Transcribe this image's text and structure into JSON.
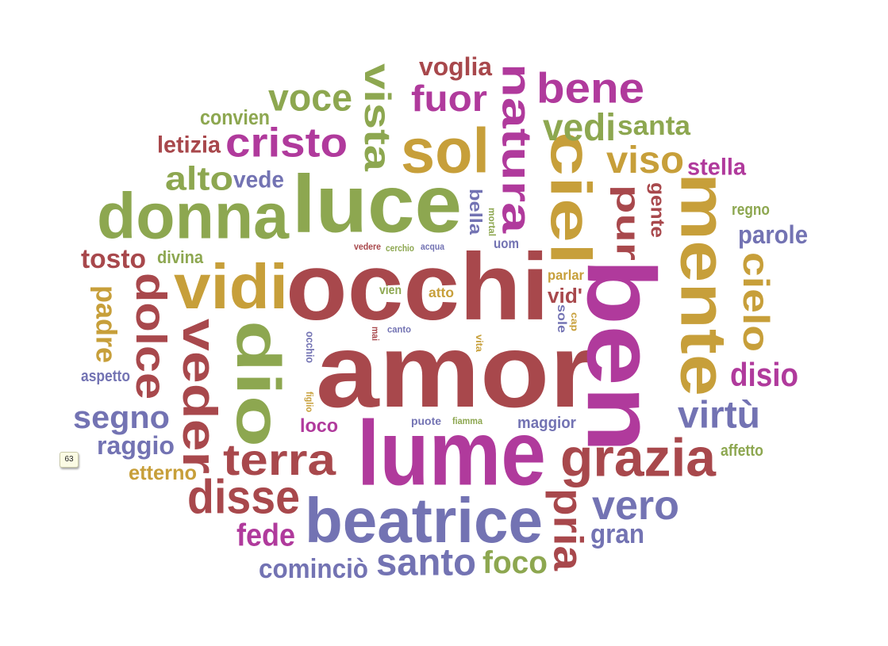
{
  "colors": {
    "red": "#a8484c",
    "green": "#8da750",
    "gold": "#c79f3a",
    "magenta": "#b03a9c",
    "blue": "#7373b3"
  },
  "tooltip": {
    "value": "63"
  },
  "words": [
    {
      "text": "amor",
      "color": "red"
    },
    {
      "text": "occhi",
      "color": "red"
    },
    {
      "text": "ben",
      "color": "magenta"
    },
    {
      "text": "lume",
      "color": "magenta"
    },
    {
      "text": "beatrice",
      "color": "blue"
    },
    {
      "text": "luce",
      "color": "green"
    },
    {
      "text": "donna",
      "color": "green"
    },
    {
      "text": "dio",
      "color": "green"
    },
    {
      "text": "vidi",
      "color": "gold"
    },
    {
      "text": "mente",
      "color": "gold"
    },
    {
      "text": "sol",
      "color": "gold"
    },
    {
      "text": "ciel",
      "color": "gold"
    },
    {
      "text": "grazia",
      "color": "red"
    },
    {
      "text": "veder",
      "color": "red"
    },
    {
      "text": "terra",
      "color": "red"
    },
    {
      "text": "disse",
      "color": "red"
    },
    {
      "text": "dolce",
      "color": "red"
    },
    {
      "text": "natura",
      "color": "magenta"
    },
    {
      "text": "vista",
      "color": "green"
    },
    {
      "text": "cristo",
      "color": "magenta"
    },
    {
      "text": "bene",
      "color": "magenta"
    },
    {
      "text": "voce",
      "color": "green"
    },
    {
      "text": "fuor",
      "color": "magenta"
    },
    {
      "text": "voglia",
      "color": "red"
    },
    {
      "text": "vedi",
      "color": "green"
    },
    {
      "text": "santa",
      "color": "green"
    },
    {
      "text": "viso",
      "color": "gold"
    },
    {
      "text": "pur",
      "color": "red"
    },
    {
      "text": "stella",
      "color": "magenta"
    },
    {
      "text": "gente",
      "color": "red"
    },
    {
      "text": "regno",
      "color": "green"
    },
    {
      "text": "parole",
      "color": "blue"
    },
    {
      "text": "cielo",
      "color": "gold"
    },
    {
      "text": "disio",
      "color": "magenta"
    },
    {
      "text": "virtù",
      "color": "blue"
    },
    {
      "text": "affetto",
      "color": "green"
    },
    {
      "text": "vero",
      "color": "blue"
    },
    {
      "text": "gran",
      "color": "blue"
    },
    {
      "text": "pria",
      "color": "red"
    },
    {
      "text": "foco",
      "color": "green"
    },
    {
      "text": "santo",
      "color": "blue"
    },
    {
      "text": "cominciò",
      "color": "blue"
    },
    {
      "text": "fede",
      "color": "magenta"
    },
    {
      "text": "convien",
      "color": "green"
    },
    {
      "text": "letizia",
      "color": "red"
    },
    {
      "text": "alto",
      "color": "green"
    },
    {
      "text": "vede",
      "color": "blue"
    },
    {
      "text": "tosto",
      "color": "red"
    },
    {
      "text": "divina",
      "color": "green"
    },
    {
      "text": "padre",
      "color": "gold"
    },
    {
      "text": "aspetto",
      "color": "blue"
    },
    {
      "text": "segno",
      "color": "blue"
    },
    {
      "text": "raggio",
      "color": "blue"
    },
    {
      "text": "etterno",
      "color": "gold"
    },
    {
      "text": "loco",
      "color": "magenta"
    },
    {
      "text": "bella",
      "color": "blue"
    },
    {
      "text": "mortal",
      "color": "green"
    },
    {
      "text": "uom",
      "color": "blue"
    },
    {
      "text": "parlar",
      "color": "gold"
    },
    {
      "text": "vid'",
      "color": "red"
    },
    {
      "text": "sole",
      "color": "blue"
    },
    {
      "text": "cap",
      "color": "gold"
    },
    {
      "text": "vien",
      "color": "green"
    },
    {
      "text": "atto",
      "color": "gold"
    },
    {
      "text": "vedere",
      "color": "red"
    },
    {
      "text": "cerchio",
      "color": "green"
    },
    {
      "text": "acqua",
      "color": "blue"
    },
    {
      "text": "occhio",
      "color": "blue"
    },
    {
      "text": "mai",
      "color": "red"
    },
    {
      "text": "canto",
      "color": "blue"
    },
    {
      "text": "vita",
      "color": "gold"
    },
    {
      "text": "figlio",
      "color": "gold"
    },
    {
      "text": "puote",
      "color": "blue"
    },
    {
      "text": "fiamma",
      "color": "green"
    },
    {
      "text": "maggior",
      "color": "blue"
    }
  ]
}
